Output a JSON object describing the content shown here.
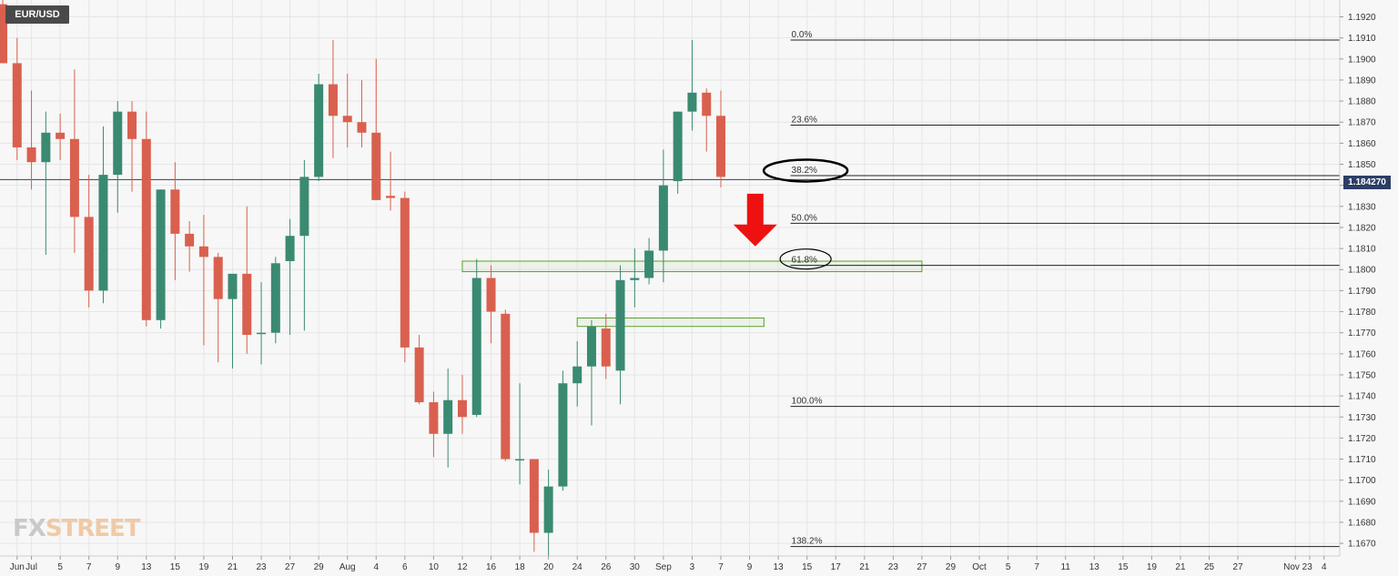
{
  "symbol": "EUR/USD",
  "brand": {
    "part1": "FX",
    "part2": "STREET"
  },
  "current_price_label": "1.184270",
  "colors": {
    "up": "#3a8a72",
    "down": "#d9604e",
    "grid": "#e6e6e6",
    "fib_line": "#222222",
    "zone": "#5aa02c",
    "arrow": "#ee1111",
    "price_line": "#2c3e66"
  },
  "chart_data": {
    "type": "candlestick",
    "ylim": [
      1.1664,
      1.1928
    ],
    "y_ticks": [
      "1.1670",
      "1.1680",
      "1.1690",
      "1.1700",
      "1.1710",
      "1.1720",
      "1.1730",
      "1.1740",
      "1.1750",
      "1.1760",
      "1.1770",
      "1.1780",
      "1.1790",
      "1.1800",
      "1.1810",
      "1.1820",
      "1.1830",
      "1.1840",
      "1.1850",
      "1.1860",
      "1.1870",
      "1.1880",
      "1.1890",
      "1.1900",
      "1.1910",
      "1.1920"
    ],
    "x_ticks": [
      {
        "label": "Jun",
        "date": "2021-06-30"
      },
      {
        "label": "Jul",
        "date": "2021-07-01"
      },
      {
        "label": "5",
        "date": "2021-07-05"
      },
      {
        "label": "7",
        "date": "2021-07-07"
      },
      {
        "label": "9",
        "date": "2021-07-09"
      },
      {
        "label": "13",
        "date": "2021-07-13"
      },
      {
        "label": "15",
        "date": "2021-07-15"
      },
      {
        "label": "19",
        "date": "2021-07-19"
      },
      {
        "label": "21",
        "date": "2021-07-21"
      },
      {
        "label": "23",
        "date": "2021-07-23"
      },
      {
        "label": "27",
        "date": "2021-07-27"
      },
      {
        "label": "29",
        "date": "2021-07-29"
      },
      {
        "label": "Aug",
        "date": "2021-08-02"
      },
      {
        "label": "4",
        "date": "2021-08-04"
      },
      {
        "label": "6",
        "date": "2021-08-06"
      },
      {
        "label": "10",
        "date": "2021-08-10"
      },
      {
        "label": "12",
        "date": "2021-08-12"
      },
      {
        "label": "16",
        "date": "2021-08-16"
      },
      {
        "label": "18",
        "date": "2021-08-18"
      },
      {
        "label": "20",
        "date": "2021-08-20"
      },
      {
        "label": "24",
        "date": "2021-08-24"
      },
      {
        "label": "26",
        "date": "2021-08-26"
      },
      {
        "label": "30",
        "date": "2021-08-30"
      },
      {
        "label": "Sep",
        "date": "2021-09-01"
      },
      {
        "label": "3",
        "date": "2021-09-03"
      },
      {
        "label": "7",
        "date": "2021-09-07"
      },
      {
        "label": "9",
        "date": "2021-09-09"
      },
      {
        "label": "13",
        "date": "2021-09-13"
      },
      {
        "label": "15",
        "date": "2021-09-15"
      },
      {
        "label": "17",
        "date": "2021-09-17"
      },
      {
        "label": "21",
        "date": "2021-09-21"
      },
      {
        "label": "23",
        "date": "2021-09-23"
      },
      {
        "label": "27",
        "date": "2021-09-27"
      },
      {
        "label": "29",
        "date": "2021-09-29"
      },
      {
        "label": "Oct",
        "date": "2021-10-01"
      },
      {
        "label": "5",
        "date": "2021-10-05"
      },
      {
        "label": "7",
        "date": "2021-10-07"
      },
      {
        "label": "11",
        "date": "2021-10-11"
      },
      {
        "label": "13",
        "date": "2021-10-13"
      },
      {
        "label": "15",
        "date": "2021-10-15"
      },
      {
        "label": "19",
        "date": "2021-10-19"
      },
      {
        "label": "21",
        "date": "2021-10-21"
      },
      {
        "label": "25",
        "date": "2021-10-25"
      },
      {
        "label": "27",
        "date": "2021-10-27"
      },
      {
        "label": "Nov 2",
        "date": "2021-11-02"
      },
      {
        "label": "3",
        "date": "2021-11-03"
      },
      {
        "label": "4",
        "date": "2021-11-04"
      }
    ],
    "candles": [
      {
        "date": "2021-06-29",
        "o": 1.1926,
        "h": 1.1928,
        "l": 1.1898,
        "c": 1.1898
      },
      {
        "date": "2021-06-30",
        "o": 1.1898,
        "h": 1.191,
        "l": 1.1852,
        "c": 1.1858
      },
      {
        "date": "2021-07-01",
        "o": 1.1858,
        "h": 1.1885,
        "l": 1.1838,
        "c": 1.1851
      },
      {
        "date": "2021-07-02",
        "o": 1.1851,
        "h": 1.1875,
        "l": 1.1807,
        "c": 1.1865
      },
      {
        "date": "2021-07-05",
        "o": 1.1865,
        "h": 1.1874,
        "l": 1.1852,
        "c": 1.1862
      },
      {
        "date": "2021-07-06",
        "o": 1.1862,
        "h": 1.1895,
        "l": 1.1808,
        "c": 1.1825
      },
      {
        "date": "2021-07-07",
        "o": 1.1825,
        "h": 1.1845,
        "l": 1.1782,
        "c": 1.179
      },
      {
        "date": "2021-07-08",
        "o": 1.179,
        "h": 1.1868,
        "l": 1.1784,
        "c": 1.1845
      },
      {
        "date": "2021-07-09",
        "o": 1.1845,
        "h": 1.188,
        "l": 1.1827,
        "c": 1.1875
      },
      {
        "date": "2021-07-12",
        "o": 1.1875,
        "h": 1.188,
        "l": 1.1837,
        "c": 1.1862
      },
      {
        "date": "2021-07-13",
        "o": 1.1862,
        "h": 1.1875,
        "l": 1.1773,
        "c": 1.1776
      },
      {
        "date": "2021-07-14",
        "o": 1.1776,
        "h": 1.1838,
        "l": 1.1772,
        "c": 1.1838
      },
      {
        "date": "2021-07-15",
        "o": 1.1838,
        "h": 1.1851,
        "l": 1.1795,
        "c": 1.1817
      },
      {
        "date": "2021-07-16",
        "o": 1.1817,
        "h": 1.1823,
        "l": 1.1799,
        "c": 1.1811
      },
      {
        "date": "2021-07-19",
        "o": 1.1811,
        "h": 1.1826,
        "l": 1.1764,
        "c": 1.1806
      },
      {
        "date": "2021-07-20",
        "o": 1.1806,
        "h": 1.1808,
        "l": 1.1756,
        "c": 1.1786
      },
      {
        "date": "2021-07-21",
        "o": 1.1786,
        "h": 1.1798,
        "l": 1.1753,
        "c": 1.1798
      },
      {
        "date": "2021-07-22",
        "o": 1.1798,
        "h": 1.183,
        "l": 1.176,
        "c": 1.1769
      },
      {
        "date": "2021-07-23",
        "o": 1.177,
        "h": 1.1794,
        "l": 1.1755,
        "c": 1.177
      },
      {
        "date": "2021-07-26",
        "o": 1.177,
        "h": 1.1806,
        "l": 1.1765,
        "c": 1.1803
      },
      {
        "date": "2021-07-27",
        "o": 1.1804,
        "h": 1.1824,
        "l": 1.1769,
        "c": 1.1816
      },
      {
        "date": "2021-07-28",
        "o": 1.1816,
        "h": 1.1852,
        "l": 1.1771,
        "c": 1.1844
      },
      {
        "date": "2021-07-29",
        "o": 1.1844,
        "h": 1.1893,
        "l": 1.1842,
        "c": 1.1888
      },
      {
        "date": "2021-07-30",
        "o": 1.1888,
        "h": 1.1909,
        "l": 1.1853,
        "c": 1.1873
      },
      {
        "date": "2021-08-02",
        "o": 1.1873,
        "h": 1.1893,
        "l": 1.1858,
        "c": 1.187
      },
      {
        "date": "2021-08-03",
        "o": 1.187,
        "h": 1.189,
        "l": 1.1858,
        "c": 1.1865
      },
      {
        "date": "2021-08-04",
        "o": 1.1865,
        "h": 1.19,
        "l": 1.1833,
        "c": 1.1833
      },
      {
        "date": "2021-08-05",
        "o": 1.1835,
        "h": 1.1856,
        "l": 1.1828,
        "c": 1.1834
      },
      {
        "date": "2021-08-06",
        "o": 1.1834,
        "h": 1.1837,
        "l": 1.1756,
        "c": 1.1763
      },
      {
        "date": "2021-08-09",
        "o": 1.1763,
        "h": 1.1769,
        "l": 1.1736,
        "c": 1.1737
      },
      {
        "date": "2021-08-10",
        "o": 1.1737,
        "h": 1.1742,
        "l": 1.1711,
        "c": 1.1722
      },
      {
        "date": "2021-08-11",
        "o": 1.1722,
        "h": 1.1753,
        "l": 1.1706,
        "c": 1.1738
      },
      {
        "date": "2021-08-12",
        "o": 1.1738,
        "h": 1.175,
        "l": 1.1722,
        "c": 1.173
      },
      {
        "date": "2021-08-13",
        "o": 1.1731,
        "h": 1.1805,
        "l": 1.173,
        "c": 1.1796
      },
      {
        "date": "2021-08-16",
        "o": 1.1796,
        "h": 1.1802,
        "l": 1.1765,
        "c": 1.178
      },
      {
        "date": "2021-08-17",
        "o": 1.1779,
        "h": 1.1781,
        "l": 1.1709,
        "c": 1.171
      },
      {
        "date": "2021-08-18",
        "o": 1.171,
        "h": 1.1746,
        "l": 1.1698,
        "c": 1.171
      },
      {
        "date": "2021-08-19",
        "o": 1.171,
        "h": 1.171,
        "l": 1.1666,
        "c": 1.1675
      },
      {
        "date": "2021-08-20",
        "o": 1.1675,
        "h": 1.1705,
        "l": 1.1664,
        "c": 1.1697
      },
      {
        "date": "2021-08-23",
        "o": 1.1697,
        "h": 1.1752,
        "l": 1.1695,
        "c": 1.1746
      },
      {
        "date": "2021-08-24",
        "o": 1.1746,
        "h": 1.1766,
        "l": 1.1735,
        "c": 1.1754
      },
      {
        "date": "2021-08-25",
        "o": 1.1754,
        "h": 1.1776,
        "l": 1.1726,
        "c": 1.1773
      },
      {
        "date": "2021-08-26",
        "o": 1.1772,
        "h": 1.1779,
        "l": 1.1748,
        "c": 1.1754
      },
      {
        "date": "2021-08-27",
        "o": 1.1752,
        "h": 1.1802,
        "l": 1.1736,
        "c": 1.1795
      },
      {
        "date": "2021-08-30",
        "o": 1.1795,
        "h": 1.181,
        "l": 1.1782,
        "c": 1.1796
      },
      {
        "date": "2021-08-31",
        "o": 1.1796,
        "h": 1.1815,
        "l": 1.1793,
        "c": 1.1809
      },
      {
        "date": "2021-09-01",
        "o": 1.1809,
        "h": 1.1857,
        "l": 1.1794,
        "c": 1.184
      },
      {
        "date": "2021-09-02",
        "o": 1.1842,
        "h": 1.1875,
        "l": 1.1836,
        "c": 1.1875
      },
      {
        "date": "2021-09-03",
        "o": 1.1875,
        "h": 1.1909,
        "l": 1.1866,
        "c": 1.1884
      },
      {
        "date": "2021-09-06",
        "o": 1.1884,
        "h": 1.1886,
        "l": 1.1856,
        "c": 1.1873
      },
      {
        "date": "2021-09-07",
        "o": 1.1873,
        "h": 1.1885,
        "l": 1.1839,
        "c": 1.1844
      }
    ],
    "fib_levels": [
      {
        "label": "0.0%",
        "value": 1.1909
      },
      {
        "label": "23.6%",
        "value": 1.18686
      },
      {
        "label": "38.2%",
        "value": 1.18446
      },
      {
        "label": "50.0%",
        "value": 1.1822
      },
      {
        "label": "61.8%",
        "value": 1.1802
      },
      {
        "label": "100.0%",
        "value": 1.1735
      },
      {
        "label": "138.2%",
        "value": 1.16685
      }
    ],
    "fib_start_date": "2021-09-09",
    "current_price": 1.18427,
    "zones": [
      {
        "x_start": "2021-08-12",
        "x_end": "2021-09-27",
        "y_low": 1.1799,
        "y_high": 1.1804
      },
      {
        "x_start": "2021-08-24",
        "x_end": "2021-09-10",
        "y_low": 1.1773,
        "y_high": 1.1777
      }
    ],
    "highlight_circles": [
      {
        "label": "38.2%",
        "date": "2021-09-13",
        "value": 1.1847,
        "emphasis": "strong"
      },
      {
        "label": "61.8%",
        "date": "2021-09-13",
        "value": 1.1805,
        "emphasis": "light"
      }
    ],
    "arrow": {
      "date": "2021-09-08",
      "from": 1.1836,
      "to": 1.1811,
      "direction": "down"
    }
  }
}
